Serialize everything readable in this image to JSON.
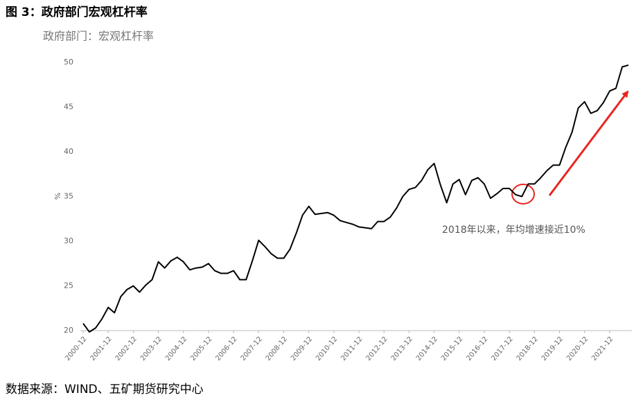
{
  "chart_data": {
    "type": "line",
    "title": "图 3：政府部门宏观杠杆率",
    "subtitle": "政府部门：宏观杠杆率",
    "y_label": "%",
    "annotation": "2018年以来，年均增速接近10%",
    "source": "数据来源：WIND、五矿期货研究中心",
    "categories": [
      "2000-12",
      null,
      null,
      null,
      "2001-12",
      null,
      null,
      null,
      "2002-12",
      null,
      null,
      null,
      "2003-12",
      null,
      null,
      null,
      "2004-12",
      null,
      null,
      null,
      "2005-12",
      null,
      null,
      null,
      "2006-12",
      null,
      null,
      null,
      "2007-12",
      null,
      null,
      null,
      "2008-12",
      null,
      null,
      null,
      "2009-12",
      null,
      null,
      null,
      "2010-12",
      null,
      null,
      null,
      "2011-12",
      null,
      null,
      null,
      "2012-12",
      null,
      null,
      null,
      "2013-12",
      null,
      null,
      null,
      "2014-12",
      null,
      null,
      null,
      "2015-12",
      null,
      null,
      null,
      "2016-12",
      null,
      null,
      null,
      "2017-12",
      null,
      null,
      null,
      "2018-12",
      null,
      null,
      null,
      "2019-12",
      null,
      null,
      null,
      "2020-12",
      null,
      null,
      null,
      "2021-12",
      null,
      null,
      null
    ],
    "series": [
      {
        "name": "政府部门：宏观杠杆率",
        "color": "#000000",
        "values": [
          20.8,
          19.85,
          20.3,
          21.3,
          22.6,
          22.0,
          23.8,
          24.6,
          25.0,
          24.3,
          25.1,
          25.7,
          27.7,
          27.0,
          27.8,
          28.2,
          27.7,
          26.8,
          27.0,
          27.1,
          27.5,
          26.7,
          26.4,
          26.4,
          26.7,
          25.7,
          25.7,
          27.8,
          30.1,
          29.4,
          28.6,
          28.1,
          28.1,
          29.1,
          30.9,
          32.9,
          33.9,
          33.0,
          33.1,
          33.2,
          32.9,
          32.3,
          32.1,
          31.9,
          31.6,
          31.5,
          31.4,
          32.2,
          32.2,
          32.7,
          33.7,
          35.0,
          35.8,
          36.0,
          36.8,
          38.0,
          38.7,
          36.3,
          34.3,
          36.4,
          36.9,
          35.2,
          36.8,
          37.1,
          36.4,
          34.8,
          35.3,
          35.9,
          35.9,
          35.2,
          35.0,
          36.4,
          36.4,
          37.1,
          37.9,
          38.5,
          38.5,
          40.5,
          42.2,
          44.9,
          45.6,
          44.3,
          44.6,
          45.5,
          46.8,
          47.1,
          49.5,
          49.7
        ]
      }
    ],
    "ylim": [
      20,
      50
    ],
    "yticks": [
      20,
      25,
      30,
      35,
      40,
      45,
      50
    ],
    "grid": false
  }
}
